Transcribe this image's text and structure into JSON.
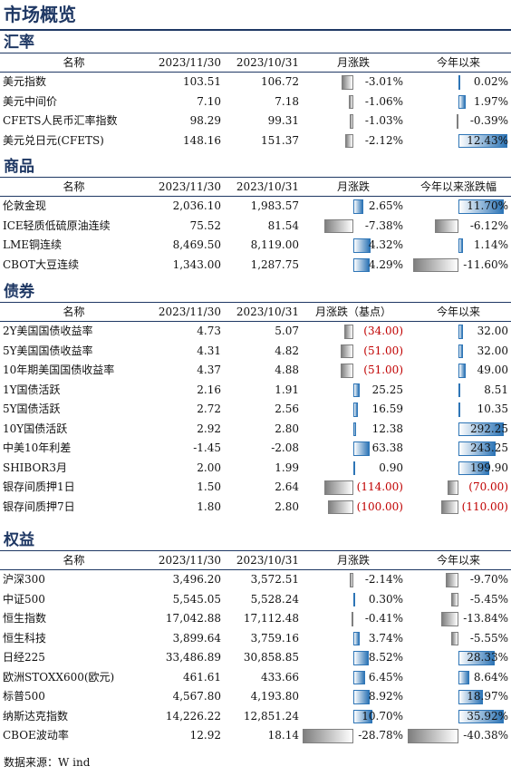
{
  "page_title": "市场概览",
  "source": "数据来源：W ind",
  "colors": {
    "title": "#1f3864",
    "positive_bar": "#2e75b6",
    "negative_bar": "#7f7f7f",
    "negative_text": "#c00000"
  },
  "sections": [
    {
      "title": "汇率",
      "headers": [
        "名称",
        "2023/11/30",
        "2023/10/31",
        "月涨跌",
        "今年以来"
      ],
      "scale_m": 13,
      "scale_y": 13,
      "rows": [
        {
          "name": "美元指数",
          "v1": "103.51",
          "v2": "106.72",
          "m": "-3.01%",
          "y": "0.02%",
          "mv": -3.01,
          "yv": 0.02,
          "mred": false,
          "yred": false
        },
        {
          "name": "美元中间价",
          "v1": "7.10",
          "v2": "7.18",
          "m": "-1.06%",
          "y": "1.97%",
          "mv": -1.06,
          "yv": 1.97,
          "mred": false,
          "yred": false
        },
        {
          "name": "CFETS人民币汇率指数",
          "v1": "98.29",
          "v2": "99.31",
          "m": "-1.03%",
          "y": "-0.39%",
          "mv": -1.03,
          "yv": -0.39,
          "mred": false,
          "yred": false
        },
        {
          "name": "美元兑日元(CFETS)",
          "v1": "148.16",
          "v2": "151.37",
          "m": "-2.12%",
          "y": "12.43%",
          "mv": -2.12,
          "yv": 12.43,
          "mred": false,
          "yred": false
        }
      ]
    },
    {
      "title": "商品",
      "headers": [
        "名称",
        "2023/11/30",
        "2023/10/31",
        "月涨跌",
        "今年以来涨跌幅"
      ],
      "scale_m": 13,
      "scale_y": 13,
      "rows": [
        {
          "name": "伦敦金现",
          "v1": "2,036.10",
          "v2": "1,983.57",
          "m": "2.65%",
          "y": "11.70%",
          "mv": 2.65,
          "yv": 11.7,
          "mred": false,
          "yred": false
        },
        {
          "name": "ICE轻质低硫原油连续",
          "v1": "75.52",
          "v2": "81.54",
          "m": "-7.38%",
          "y": "-6.12%",
          "mv": -7.38,
          "yv": -6.12,
          "mred": false,
          "yred": false
        },
        {
          "name": "LME铜连续",
          "v1": "8,469.50",
          "v2": "8,119.00",
          "m": "4.32%",
          "y": "1.14%",
          "mv": 4.32,
          "yv": 1.14,
          "mred": false,
          "yred": false
        },
        {
          "name": "CBOT大豆连续",
          "v1": "1,343.00",
          "v2": "1,287.75",
          "m": "4.29%",
          "y": "-11.60%",
          "mv": 4.29,
          "yv": -11.6,
          "mred": false,
          "yred": false
        }
      ]
    },
    {
      "title": "债券",
      "headers": [
        "名称",
        "2023/11/30",
        "2023/10/31",
        "月涨跌（基点）",
        "今年以来"
      ],
      "scale_m": 200,
      "scale_y": 330,
      "rows": [
        {
          "name": "2Y美国国债收益率",
          "v1": "4.73",
          "v2": "5.07",
          "m": "(34.00)",
          "y": "32.00",
          "mv": -34,
          "yv": 32,
          "mred": true,
          "yred": false
        },
        {
          "name": "5Y美国国债收益率",
          "v1": "4.31",
          "v2": "4.82",
          "m": "(51.00)",
          "y": "32.00",
          "mv": -51,
          "yv": 32,
          "mred": true,
          "yred": false
        },
        {
          "name": "10年期美国国债收益率",
          "v1": "4.37",
          "v2": "4.88",
          "m": "(51.00)",
          "y": "49.00",
          "mv": -51,
          "yv": 49,
          "mred": true,
          "yred": false
        },
        {
          "name": "1Y国债活跃",
          "v1": "2.16",
          "v2": "1.91",
          "m": "25.25",
          "y": "8.51",
          "mv": 25.25,
          "yv": 8.51,
          "mred": false,
          "yred": false
        },
        {
          "name": "5Y国债活跃",
          "v1": "2.72",
          "v2": "2.56",
          "m": "16.59",
          "y": "10.35",
          "mv": 16.59,
          "yv": 10.35,
          "mred": false,
          "yred": false
        },
        {
          "name": "10Y国债活跃",
          "v1": "2.92",
          "v2": "2.80",
          "m": "12.38",
          "y": "292.25",
          "mv": 12.38,
          "yv": 292.25,
          "mred": false,
          "yred": false
        },
        {
          "name": "中美10年利差",
          "v1": "-1.45",
          "v2": "-2.08",
          "m": "63.38",
          "y": "243.25",
          "mv": 63.38,
          "yv": 243.25,
          "mred": false,
          "yred": false
        },
        {
          "name": "SHIBOR3月",
          "v1": "2.00",
          "v2": "1.99",
          "m": "0.90",
          "y": "199.90",
          "mv": 0.9,
          "yv": 199.9,
          "mred": false,
          "yred": false
        },
        {
          "name": "银存间质押1日",
          "v1": "1.50",
          "v2": "2.64",
          "m": "(114.00)",
          "y": "(70.00)",
          "mv": -114,
          "yv": -70,
          "mred": true,
          "yred": true
        },
        {
          "name": "银存间质押7日",
          "v1": "1.80",
          "v2": "2.80",
          "m": "(100.00)",
          "y": "(110.00)",
          "mv": -100,
          "yv": -110,
          "mred": true,
          "yred": true
        }
      ]
    },
    {
      "title": "权益",
      "headers": [
        "名称",
        "2023/11/30",
        "2023/10/31",
        "月涨跌",
        "今年以来"
      ],
      "scale_m": 28,
      "scale_y": 40,
      "rows": [
        {
          "name": "沪深300",
          "v1": "3,496.20",
          "v2": "3,572.51",
          "m": "-2.14%",
          "y": "-9.70%",
          "mv": -2.14,
          "yv": -9.7,
          "mred": false,
          "yred": false
        },
        {
          "name": "中证500",
          "v1": "5,545.05",
          "v2": "5,528.24",
          "m": "0.30%",
          "y": "-5.45%",
          "mv": 0.3,
          "yv": -5.45,
          "mred": false,
          "yred": false
        },
        {
          "name": "恒生指数",
          "v1": "17,042.88",
          "v2": "17,112.48",
          "m": "-0.41%",
          "y": "-13.84%",
          "mv": -0.41,
          "yv": -13.84,
          "mred": false,
          "yred": false
        },
        {
          "name": "恒生科技",
          "v1": "3,899.64",
          "v2": "3,759.16",
          "m": "3.74%",
          "y": "-5.55%",
          "mv": 3.74,
          "yv": -5.55,
          "mred": false,
          "yred": false
        },
        {
          "name": "日经225",
          "v1": "33,486.89",
          "v2": "30,858.85",
          "m": "8.52%",
          "y": "28.33%",
          "mv": 8.52,
          "yv": 28.33,
          "mred": false,
          "yred": false
        },
        {
          "name": "欧洲STOXX600(欧元)",
          "v1": "461.61",
          "v2": "433.66",
          "m": "6.45%",
          "y": "8.64%",
          "mv": 6.45,
          "yv": 8.64,
          "mred": false,
          "yred": false
        },
        {
          "name": "标普500",
          "v1": "4,567.80",
          "v2": "4,193.80",
          "m": "8.92%",
          "y": "18.97%",
          "mv": 8.92,
          "yv": 18.97,
          "mred": false,
          "yred": false
        },
        {
          "name": "纳斯达克指数",
          "v1": "14,226.22",
          "v2": "12,851.24",
          "m": "10.70%",
          "y": "35.92%",
          "mv": 10.7,
          "yv": 35.92,
          "mred": false,
          "yred": false
        },
        {
          "name": "CBOE波动率",
          "v1": "12.92",
          "v2": "18.14",
          "m": "-28.78%",
          "y": "-40.38%",
          "mv": -28.78,
          "yv": -40.38,
          "mred": false,
          "yred": false
        }
      ]
    }
  ]
}
